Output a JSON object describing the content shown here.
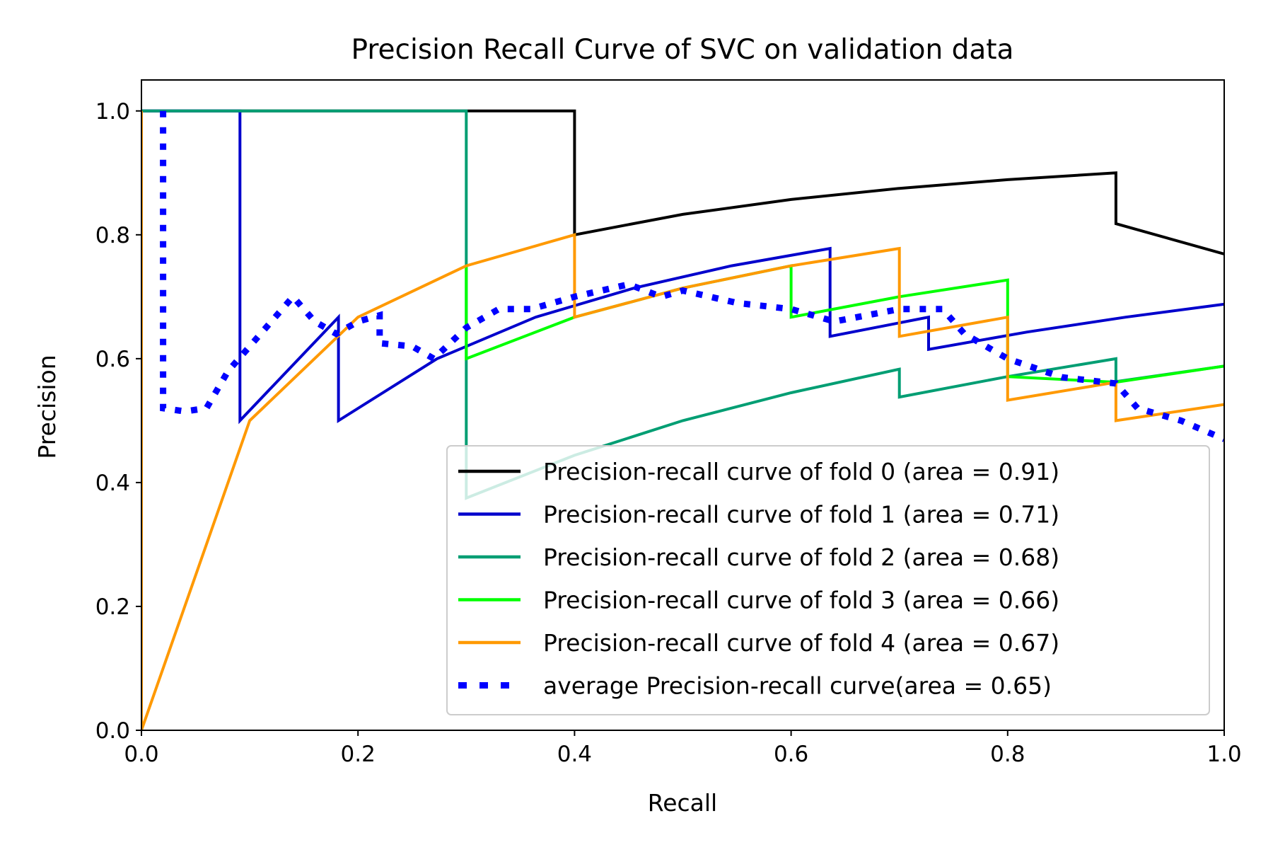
{
  "chart_data": {
    "type": "line",
    "title": "Precision Recall Curve of SVC on validation data",
    "xlabel": "Recall",
    "ylabel": "Precision",
    "xlim": [
      0,
      1
    ],
    "ylim": [
      0,
      1.05
    ],
    "x_ticks": [
      "0.0",
      "0.2",
      "0.4",
      "0.6",
      "0.8",
      "1.0"
    ],
    "y_ticks": [
      "0.0",
      "0.2",
      "0.4",
      "0.6",
      "0.8",
      "1.0"
    ],
    "grid": false,
    "legend_position": "lower-right",
    "series": [
      {
        "name": "Precision-recall curve of fold 0 (area = 0.91)",
        "color": "#000000",
        "style": "solid",
        "points": [
          [
            0,
            1.0
          ],
          [
            0.4,
            1.0
          ],
          [
            0.4,
            0.8
          ],
          [
            0.5,
            0.833
          ],
          [
            0.6,
            0.857
          ],
          [
            0.7,
            0.875
          ],
          [
            0.8,
            0.889
          ],
          [
            0.9,
            0.9
          ],
          [
            0.9,
            0.818
          ],
          [
            1.0,
            0.769
          ]
        ]
      },
      {
        "name": "Precision-recall curve of fold 1 (area = 0.71)",
        "color": "#0000cc",
        "style": "solid",
        "points": [
          [
            0,
            1.0
          ],
          [
            0.091,
            1.0
          ],
          [
            0.091,
            0.5
          ],
          [
            0.182,
            0.667
          ],
          [
            0.182,
            0.5
          ],
          [
            0.273,
            0.6
          ],
          [
            0.364,
            0.667
          ],
          [
            0.455,
            0.714
          ],
          [
            0.545,
            0.75
          ],
          [
            0.636,
            0.778
          ],
          [
            0.636,
            0.636
          ],
          [
            0.727,
            0.667
          ],
          [
            0.727,
            0.615
          ],
          [
            0.818,
            0.643
          ],
          [
            0.909,
            0.667
          ],
          [
            1.0,
            0.688
          ]
        ]
      },
      {
        "name": "Precision-recall curve of fold 2 (area = 0.68)",
        "color": "#009e73",
        "style": "solid",
        "points": [
          [
            0,
            1.0
          ],
          [
            0.3,
            1.0
          ],
          [
            0.3,
            0.375
          ],
          [
            0.4,
            0.444
          ],
          [
            0.5,
            0.5
          ],
          [
            0.6,
            0.545
          ],
          [
            0.7,
            0.583
          ],
          [
            0.7,
            0.538
          ],
          [
            0.8,
            0.571
          ],
          [
            0.9,
            0.6
          ],
          [
            0.9,
            0.563
          ],
          [
            1.0,
            0.588
          ]
        ]
      },
      {
        "name": "Precision-recall curve of fold 3 (area = 0.66)",
        "color": "#00ff00",
        "style": "solid",
        "points": [
          [
            0.3,
            0.75
          ],
          [
            0.3,
            0.6
          ],
          [
            0.4,
            0.667
          ],
          [
            0.5,
            0.714
          ],
          [
            0.6,
            0.75
          ],
          [
            0.6,
            0.667
          ],
          [
            0.7,
            0.7
          ],
          [
            0.8,
            0.727
          ],
          [
            0.8,
            0.571
          ],
          [
            0.9,
            0.562
          ],
          [
            1.0,
            0.588
          ]
        ]
      },
      {
        "name": "Precision-recall curve of fold 4 (area = 0.67)",
        "color": "#ff9900",
        "style": "solid",
        "points": [
          [
            0,
            1.0
          ],
          [
            0,
            0
          ],
          [
            0.1,
            0.5
          ],
          [
            0.2,
            0.667
          ],
          [
            0.3,
            0.75
          ],
          [
            0.4,
            0.8
          ],
          [
            0.4,
            0.667
          ],
          [
            0.5,
            0.714
          ],
          [
            0.6,
            0.75
          ],
          [
            0.7,
            0.778
          ],
          [
            0.7,
            0.636
          ],
          [
            0.8,
            0.667
          ],
          [
            0.8,
            0.533
          ],
          [
            0.9,
            0.562
          ],
          [
            0.9,
            0.5
          ],
          [
            1.0,
            0.526
          ]
        ]
      },
      {
        "name": "average Precision-recall curve(area = 0.65)",
        "color": "#0000ff",
        "style": "dotted",
        "points": [
          [
            0.02,
            1.0
          ],
          [
            0.02,
            0.52
          ],
          [
            0.04,
            0.515
          ],
          [
            0.06,
            0.52
          ],
          [
            0.08,
            0.58
          ],
          [
            0.1,
            0.62
          ],
          [
            0.12,
            0.66
          ],
          [
            0.14,
            0.7
          ],
          [
            0.16,
            0.66
          ],
          [
            0.18,
            0.64
          ],
          [
            0.2,
            0.66
          ],
          [
            0.22,
            0.67
          ],
          [
            0.22,
            0.625
          ],
          [
            0.25,
            0.62
          ],
          [
            0.27,
            0.6
          ],
          [
            0.3,
            0.65
          ],
          [
            0.33,
            0.68
          ],
          [
            0.36,
            0.68
          ],
          [
            0.4,
            0.7
          ],
          [
            0.45,
            0.72
          ],
          [
            0.48,
            0.7
          ],
          [
            0.5,
            0.71
          ],
          [
            0.55,
            0.69
          ],
          [
            0.6,
            0.68
          ],
          [
            0.64,
            0.66
          ],
          [
            0.7,
            0.68
          ],
          [
            0.74,
            0.68
          ],
          [
            0.76,
            0.64
          ],
          [
            0.8,
            0.6
          ],
          [
            0.85,
            0.57
          ],
          [
            0.9,
            0.56
          ],
          [
            0.92,
            0.52
          ],
          [
            0.96,
            0.5
          ],
          [
            1.0,
            0.47
          ]
        ]
      }
    ]
  }
}
